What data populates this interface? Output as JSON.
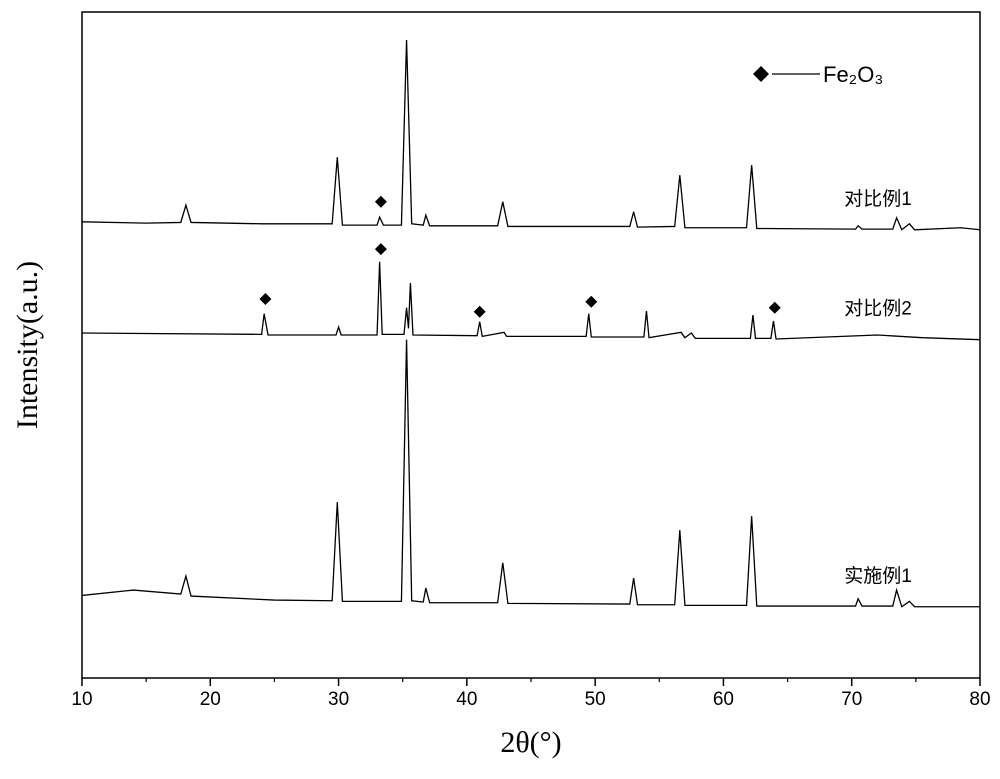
{
  "chart_data": {
    "type": "line",
    "xlabel": "2θ(°)",
    "ylabel": "Intensity(a.u.)",
    "xlim": [
      10,
      80
    ],
    "xticks": [
      10,
      20,
      30,
      40,
      50,
      60,
      70,
      80
    ],
    "xminorticks": [
      15,
      25,
      35,
      45,
      55,
      65,
      75
    ],
    "ylim": [
      0,
      100
    ],
    "legend": {
      "label": "Fe₂O₃",
      "marker": "diamond",
      "corner": "upper right"
    },
    "markers": {
      "color": "#000000",
      "x": [
        33.3,
        33.3,
        24.3,
        41.0,
        49.7,
        64.0
      ],
      "y": [
        71.5,
        64.4,
        56.9,
        55.0,
        56.5,
        55.6
      ]
    },
    "series": [
      {
        "name": "对比例1",
        "color": "#000000",
        "x": [
          10,
          15,
          17.7,
          18.1,
          18.5,
          24,
          29.5,
          29.9,
          30.3,
          33.0,
          33.2,
          33.5,
          34.9,
          35.3,
          35.7,
          36.6,
          36.8,
          37.1,
          42.4,
          42.8,
          43.2,
          52.7,
          53.0,
          53.3,
          56.2,
          56.6,
          57.0,
          61.8,
          62.2,
          62.6,
          70.3,
          70.5,
          70.8,
          73.2,
          73.5,
          73.9,
          74.5,
          74.9,
          78.5,
          80
        ],
        "values": [
          68.5,
          68.3,
          68.4,
          71.0,
          68.4,
          68.2,
          68.2,
          78.2,
          68.0,
          68.0,
          69.2,
          68.0,
          68.0,
          95.8,
          68.2,
          68.0,
          69.5,
          67.9,
          67.9,
          71.5,
          67.8,
          67.8,
          70.0,
          67.7,
          67.8,
          75.5,
          67.6,
          67.6,
          77.0,
          67.5,
          67.4,
          67.9,
          67.4,
          67.4,
          69.1,
          67.3,
          68.2,
          67.3,
          67.6,
          67.3
        ]
      },
      {
        "name": "对比例2",
        "color": "#000000",
        "x": [
          10,
          24.0,
          24.2,
          24.5,
          29.8,
          30.0,
          30.2,
          33.0,
          33.2,
          33.4,
          35.1,
          35.3,
          35.45,
          35.6,
          35.8,
          40.8,
          41.0,
          41.2,
          42.9,
          43.1,
          49.3,
          49.5,
          49.7,
          53.8,
          54.0,
          54.2,
          56.7,
          57.0,
          57.5,
          57.8,
          62.1,
          62.3,
          62.5,
          63.7,
          63.9,
          64.1,
          72.0,
          75.5,
          80
        ],
        "values": [
          51.8,
          51.6,
          54.7,
          51.5,
          51.5,
          52.7,
          51.5,
          51.5,
          62.5,
          51.6,
          51.6,
          55.6,
          52.5,
          59.3,
          51.5,
          51.4,
          53.5,
          51.3,
          51.9,
          51.3,
          51.3,
          54.7,
          51.2,
          51.2,
          55.1,
          51.1,
          51.9,
          51.1,
          51.8,
          51.0,
          51.0,
          54.5,
          51.0,
          51.0,
          53.6,
          50.9,
          51.5,
          51.1,
          50.8
        ]
      },
      {
        "name": "实施例1",
        "color": "#000000",
        "x": [
          10,
          14,
          17.7,
          18.1,
          18.5,
          25,
          29.5,
          29.9,
          30.3,
          34.9,
          35.3,
          35.7,
          36.6,
          36.8,
          37.1,
          42.4,
          42.8,
          43.2,
          52.7,
          53.0,
          53.3,
          56.2,
          56.6,
          57.0,
          61.8,
          62.2,
          62.6,
          70.3,
          70.5,
          70.8,
          73.2,
          73.5,
          73.9,
          74.5,
          74.9,
          80
        ],
        "values": [
          12.4,
          13.2,
          12.6,
          15.3,
          12.3,
          11.7,
          11.6,
          26.4,
          11.5,
          11.5,
          50.8,
          11.6,
          11.4,
          13.5,
          11.3,
          11.3,
          17.3,
          11.2,
          11.1,
          15.0,
          11.0,
          11.0,
          22.2,
          10.9,
          10.9,
          24.3,
          10.8,
          10.8,
          11.9,
          10.8,
          10.8,
          13.2,
          10.7,
          11.5,
          10.7,
          10.7
        ]
      }
    ]
  }
}
